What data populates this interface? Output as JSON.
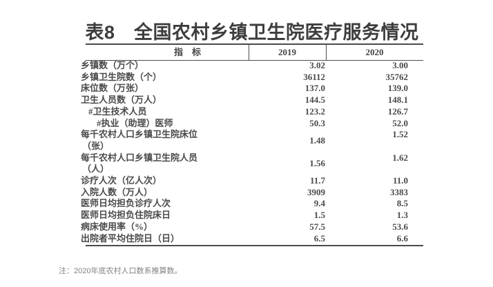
{
  "title": "表8　全国农村乡镇卫生院医疗服务情况",
  "table": {
    "headers": [
      "指　标",
      "2019",
      "2020"
    ],
    "rows": [
      {
        "label": "乡镇数（万个）",
        "indent": 0,
        "v2019": "3.02",
        "v2020": "3.00"
      },
      {
        "label": "乡镇卫生院数（个）",
        "indent": 0,
        "v2019": "36112",
        "v2020": "35762"
      },
      {
        "label": "床位数（万张）",
        "indent": 0,
        "v2019": "137.0",
        "v2020": "139.0"
      },
      {
        "label": "卫生人员数（万人）",
        "indent": 0,
        "v2019": "144.5",
        "v2020": "148.1"
      },
      {
        "label": "#卫生技术人员",
        "indent": 1,
        "v2019": "123.2",
        "v2020": "126.7"
      },
      {
        "label": "#执业（助理）医师",
        "indent": 2,
        "v2019": "50.3",
        "v2020": "52.0"
      },
      {
        "label": "每千农村人口乡镇卫生院床位",
        "label2": "（张）",
        "indent": 0,
        "v2019": "1.48",
        "v2020": "1.52"
      },
      {
        "label": "每千农村人口乡镇卫生院人员",
        "label2": "（人）",
        "indent": 0,
        "v2019": "1.56",
        "v2020": "1.62"
      },
      {
        "label": "诊疗人次（亿人次）",
        "indent": 0,
        "v2019": "11.7",
        "v2020": "11.0"
      },
      {
        "label": "入院人数（万人）",
        "indent": 0,
        "v2019": "3909",
        "v2020": "3383"
      },
      {
        "label": "医师日均担负诊疗人次",
        "indent": 0,
        "v2019": "9.4",
        "v2020": "8.5"
      },
      {
        "label": "医师日均担负住院床日",
        "indent": 0,
        "v2019": "1.5",
        "v2020": "1.3"
      },
      {
        "label": "病床使用率（%）",
        "indent": 0,
        "v2019": "57.5",
        "v2020": "53.6"
      },
      {
        "label": "出院者平均住院日（日）",
        "indent": 0,
        "v2019": "6.5",
        "v2020": "6.6"
      }
    ]
  },
  "footnote": "注：2020年底农村人口数系推算数。",
  "colors": {
    "title_text": "#3d3d3d",
    "body_text": "#4a4a4a",
    "rule_line": "#4a4a4a",
    "footnote_text": "#848484",
    "background": "#ffffff"
  }
}
